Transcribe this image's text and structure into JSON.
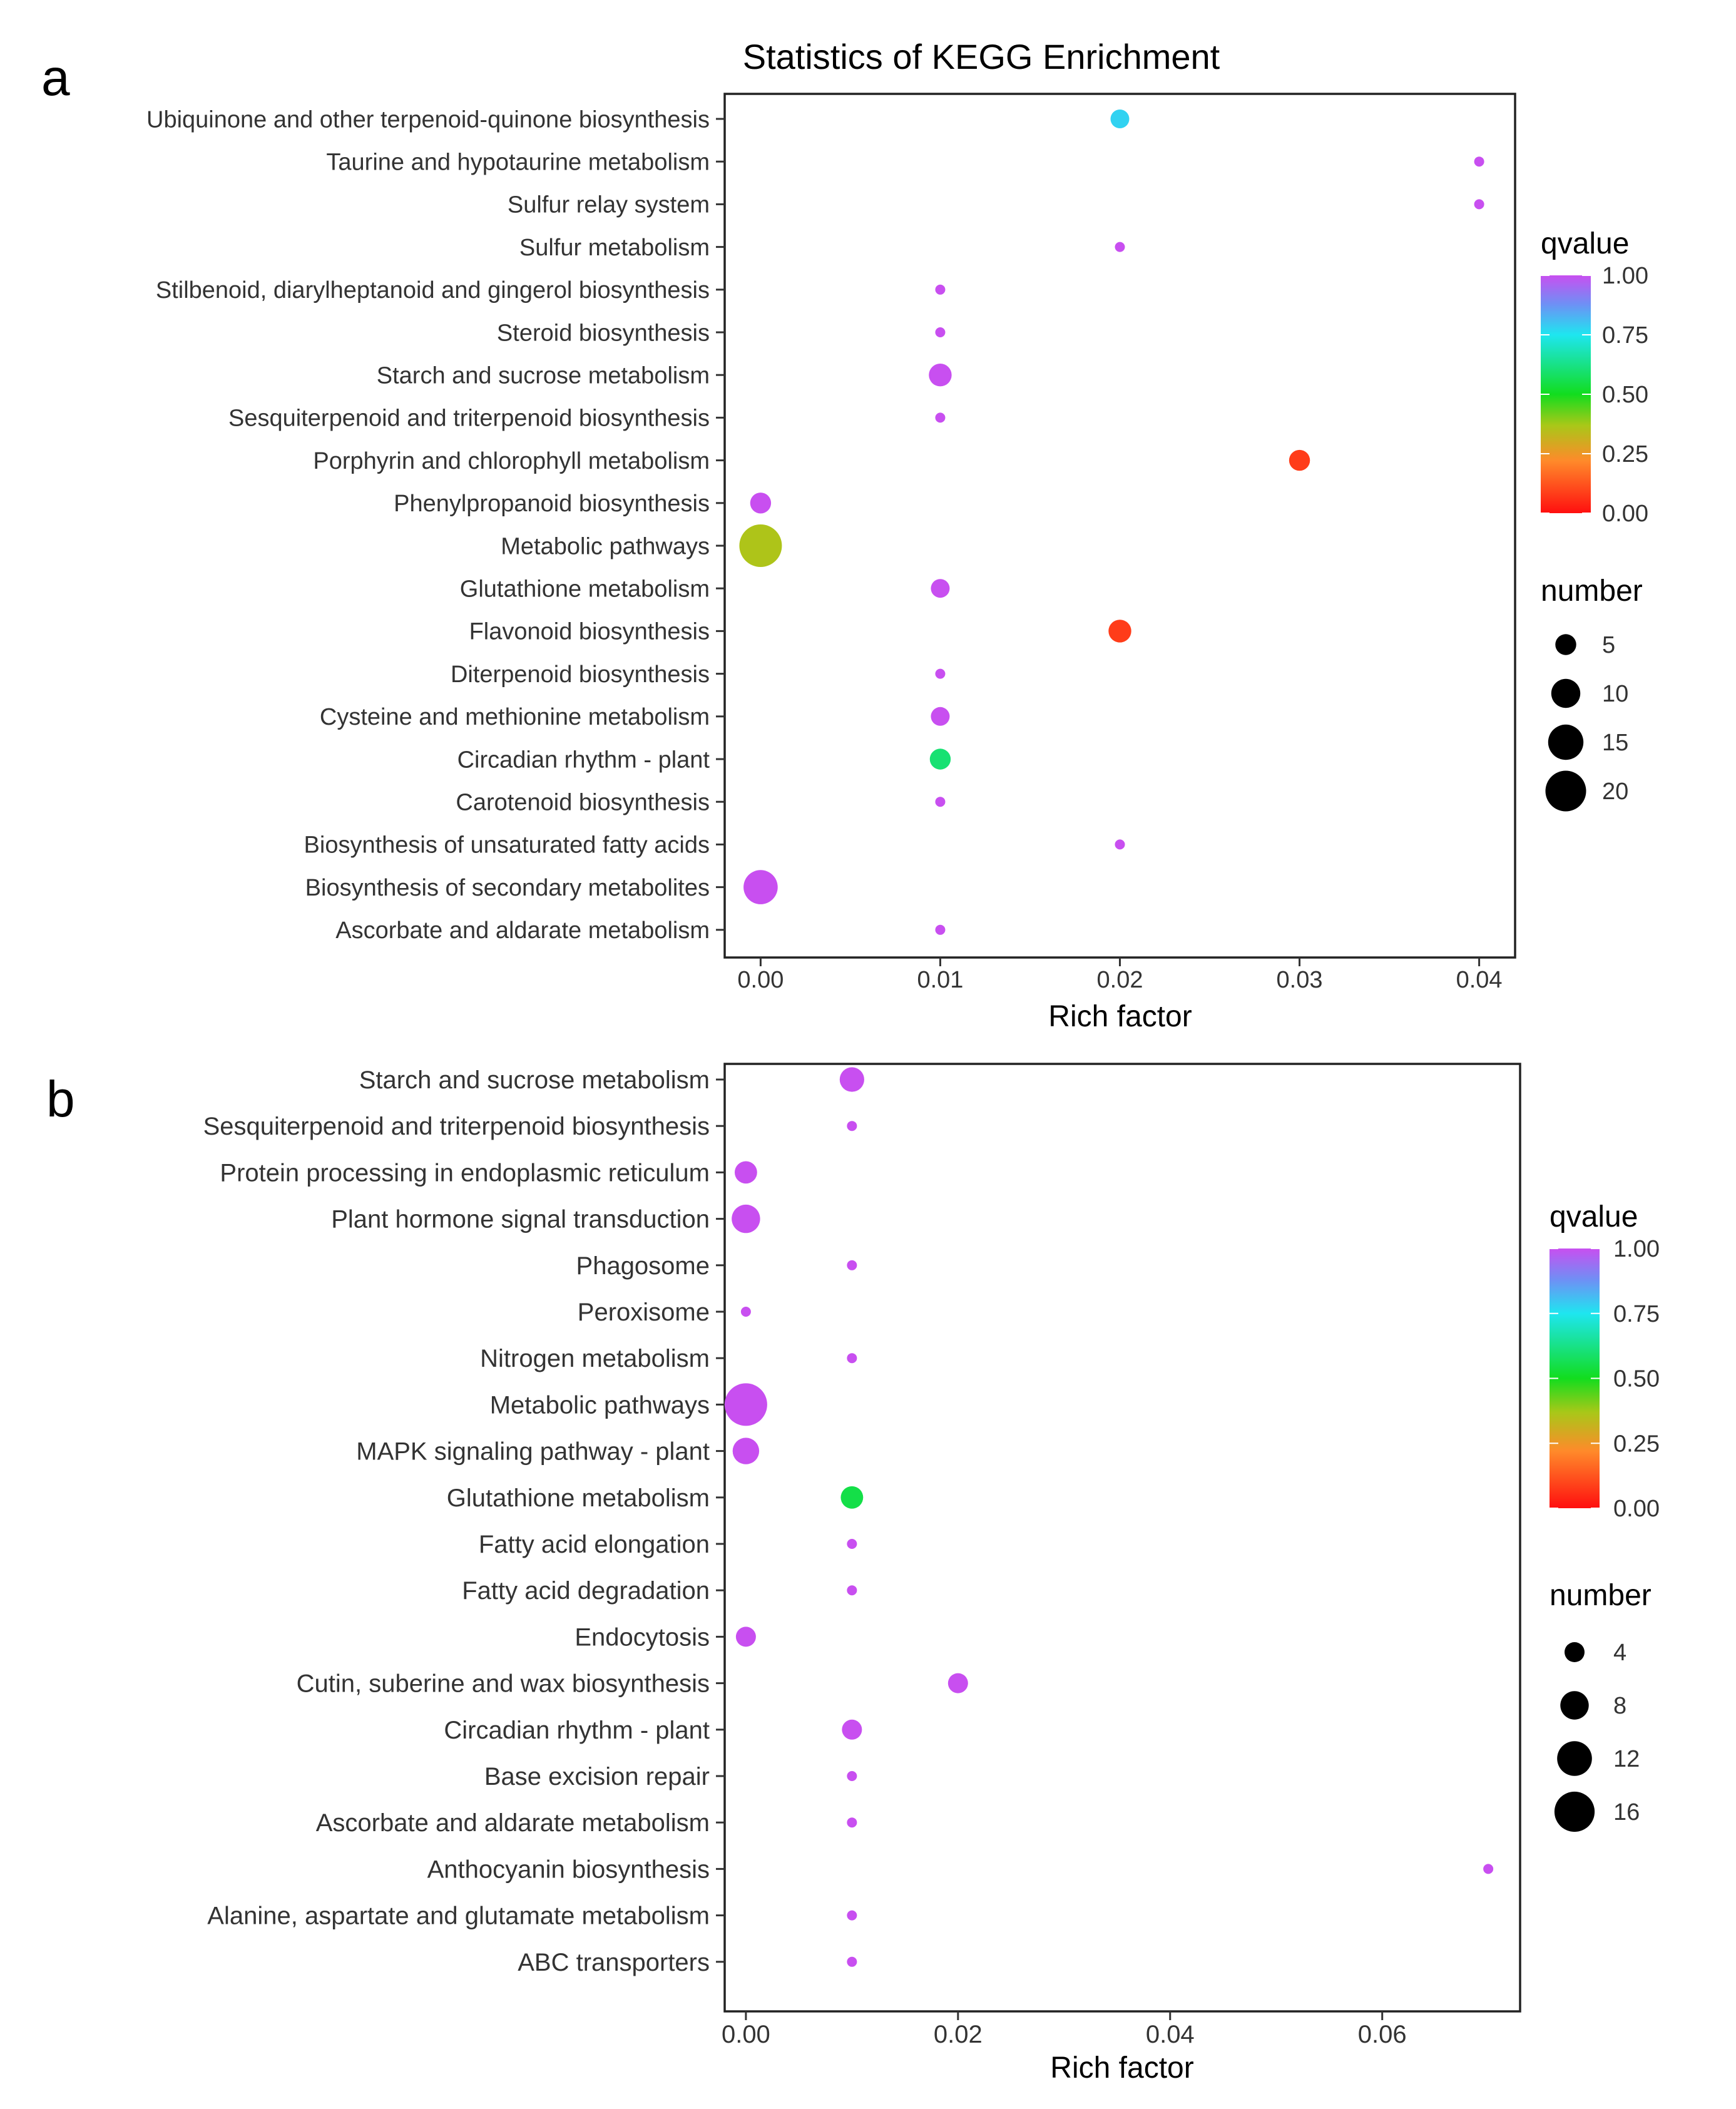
{
  "chart_data": [
    {
      "panel_label": "a",
      "type": "scatter",
      "title": "Statistics of KEGG Enrichment",
      "xlabel": "Rich factor",
      "ylabel": "",
      "xlim": [
        -0.002,
        0.042
      ],
      "xticks": [
        0.0,
        0.01,
        0.02,
        0.03,
        0.04
      ],
      "xtick_labels": [
        "0.00",
        "0.01",
        "0.02",
        "0.03",
        "0.04"
      ],
      "grid": false,
      "legend_placement": "right",
      "color_legend": {
        "title": "qvalue",
        "ticks": [
          1.0,
          0.75,
          0.5,
          0.25,
          0.0
        ],
        "tick_labels": [
          "1.00",
          "0.75",
          "0.50",
          "0.25",
          "0.00"
        ]
      },
      "size_legend": {
        "title": "number",
        "values": [
          5,
          10,
          15,
          20
        ],
        "labels": [
          "5",
          "10",
          "15",
          "20"
        ]
      },
      "size_range": [
        1,
        22
      ],
      "points": [
        {
          "pathway": "Ubiquinone and other terpenoid-quinone biosynthesis",
          "rich_factor": 0.02,
          "qvalue": 0.78,
          "number": 4
        },
        {
          "pathway": "Taurine and hypotaurine metabolism",
          "rich_factor": 0.04,
          "qvalue": 1.0,
          "number": 1
        },
        {
          "pathway": "Sulfur relay system",
          "rich_factor": 0.04,
          "qvalue": 1.0,
          "number": 1
        },
        {
          "pathway": "Sulfur metabolism",
          "rich_factor": 0.02,
          "qvalue": 1.0,
          "number": 1
        },
        {
          "pathway": "Stilbenoid, diarylheptanoid and gingerol biosynthesis",
          "rich_factor": 0.01,
          "qvalue": 1.0,
          "number": 1
        },
        {
          "pathway": "Steroid biosynthesis",
          "rich_factor": 0.01,
          "qvalue": 1.0,
          "number": 1
        },
        {
          "pathway": "Starch and sucrose metabolism",
          "rich_factor": 0.01,
          "qvalue": 1.0,
          "number": 6
        },
        {
          "pathway": "Sesquiterpenoid and triterpenoid biosynthesis",
          "rich_factor": 0.01,
          "qvalue": 1.0,
          "number": 1
        },
        {
          "pathway": "Porphyrin and chlorophyll metabolism",
          "rich_factor": 0.03,
          "qvalue": 0.08,
          "number": 5
        },
        {
          "pathway": "Phenylpropanoid biosynthesis",
          "rich_factor": 0.0,
          "qvalue": 1.0,
          "number": 5
        },
        {
          "pathway": "Metabolic pathways",
          "rich_factor": 0.0,
          "qvalue": 0.36,
          "number": 22
        },
        {
          "pathway": "Glutathione metabolism",
          "rich_factor": 0.01,
          "qvalue": 1.0,
          "number": 4
        },
        {
          "pathway": "Flavonoid biosynthesis",
          "rich_factor": 0.02,
          "qvalue": 0.08,
          "number": 6
        },
        {
          "pathway": "Diterpenoid biosynthesis",
          "rich_factor": 0.01,
          "qvalue": 1.0,
          "number": 1
        },
        {
          "pathway": "Cysteine and methionine metabolism",
          "rich_factor": 0.01,
          "qvalue": 1.0,
          "number": 4
        },
        {
          "pathway": "Circadian rhythm - plant",
          "rich_factor": 0.01,
          "qvalue": 0.6,
          "number": 5
        },
        {
          "pathway": "Carotenoid biosynthesis",
          "rich_factor": 0.01,
          "qvalue": 1.0,
          "number": 1
        },
        {
          "pathway": "Biosynthesis of unsaturated fatty acids",
          "rich_factor": 0.02,
          "qvalue": 1.0,
          "number": 1
        },
        {
          "pathway": "Biosynthesis of secondary metabolites",
          "rich_factor": 0.0,
          "qvalue": 1.0,
          "number": 14
        },
        {
          "pathway": "Ascorbate and aldarate metabolism",
          "rich_factor": 0.01,
          "qvalue": 1.0,
          "number": 1
        }
      ]
    },
    {
      "panel_label": "b",
      "type": "scatter",
      "title": "",
      "xlabel": "Rich factor",
      "ylabel": "",
      "xlim": [
        -0.002,
        0.073
      ],
      "xticks": [
        0.0,
        0.02,
        0.04,
        0.06
      ],
      "xtick_labels": [
        "0.00",
        "0.02",
        "0.04",
        "0.06"
      ],
      "grid": false,
      "legend_placement": "right",
      "color_legend": {
        "title": "qvalue",
        "ticks": [
          1.0,
          0.75,
          0.5,
          0.25,
          0.0
        ],
        "tick_labels": [
          "1.00",
          "0.75",
          "0.50",
          "0.25",
          "0.00"
        ]
      },
      "size_legend": {
        "title": "number",
        "values": [
          4,
          8,
          12,
          16
        ],
        "labels": [
          "4",
          "8",
          "12",
          "16"
        ]
      },
      "size_range": [
        1,
        18
      ],
      "points": [
        {
          "pathway": "Starch and sucrose metabolism",
          "rich_factor": 0.01,
          "qvalue": 1.0,
          "number": 6
        },
        {
          "pathway": "Sesquiterpenoid and triterpenoid biosynthesis",
          "rich_factor": 0.01,
          "qvalue": 1.0,
          "number": 1
        },
        {
          "pathway": "Protein processing in endoplasmic reticulum",
          "rich_factor": 0.0,
          "qvalue": 1.0,
          "number": 5
        },
        {
          "pathway": "Plant hormone signal transduction",
          "rich_factor": 0.0,
          "qvalue": 1.0,
          "number": 8
        },
        {
          "pathway": "Phagosome",
          "rich_factor": 0.01,
          "qvalue": 1.0,
          "number": 1
        },
        {
          "pathway": "Peroxisome",
          "rich_factor": 0.0,
          "qvalue": 1.0,
          "number": 1
        },
        {
          "pathway": "Nitrogen metabolism",
          "rich_factor": 0.01,
          "qvalue": 1.0,
          "number": 1
        },
        {
          "pathway": "Metabolic pathways",
          "rich_factor": 0.0,
          "qvalue": 1.0,
          "number": 18
        },
        {
          "pathway": "MAPK signaling pathway - plant",
          "rich_factor": 0.0,
          "qvalue": 1.0,
          "number": 7
        },
        {
          "pathway": "Glutathione metabolism",
          "rich_factor": 0.01,
          "qvalue": 0.55,
          "number": 5
        },
        {
          "pathway": "Fatty acid elongation",
          "rich_factor": 0.01,
          "qvalue": 1.0,
          "number": 1
        },
        {
          "pathway": "Fatty acid degradation",
          "rich_factor": 0.01,
          "qvalue": 1.0,
          "number": 1
        },
        {
          "pathway": "Endocytosis",
          "rich_factor": 0.0,
          "qvalue": 1.0,
          "number": 4
        },
        {
          "pathway": "Cutin, suberine and wax biosynthesis",
          "rich_factor": 0.02,
          "qvalue": 1.0,
          "number": 4
        },
        {
          "pathway": "Circadian rhythm - plant",
          "rich_factor": 0.01,
          "qvalue": 1.0,
          "number": 4
        },
        {
          "pathway": "Base excision repair",
          "rich_factor": 0.01,
          "qvalue": 1.0,
          "number": 1
        },
        {
          "pathway": "Ascorbate and aldarate metabolism",
          "rich_factor": 0.01,
          "qvalue": 1.0,
          "number": 1
        },
        {
          "pathway": "Anthocyanin biosynthesis",
          "rich_factor": 0.07,
          "qvalue": 1.0,
          "number": 1
        },
        {
          "pathway": "Alanine, aspartate and glutamate metabolism",
          "rich_factor": 0.01,
          "qvalue": 1.0,
          "number": 1
        },
        {
          "pathway": "ABC transporters",
          "rich_factor": 0.01,
          "qvalue": 1.0,
          "number": 1
        }
      ]
    }
  ]
}
